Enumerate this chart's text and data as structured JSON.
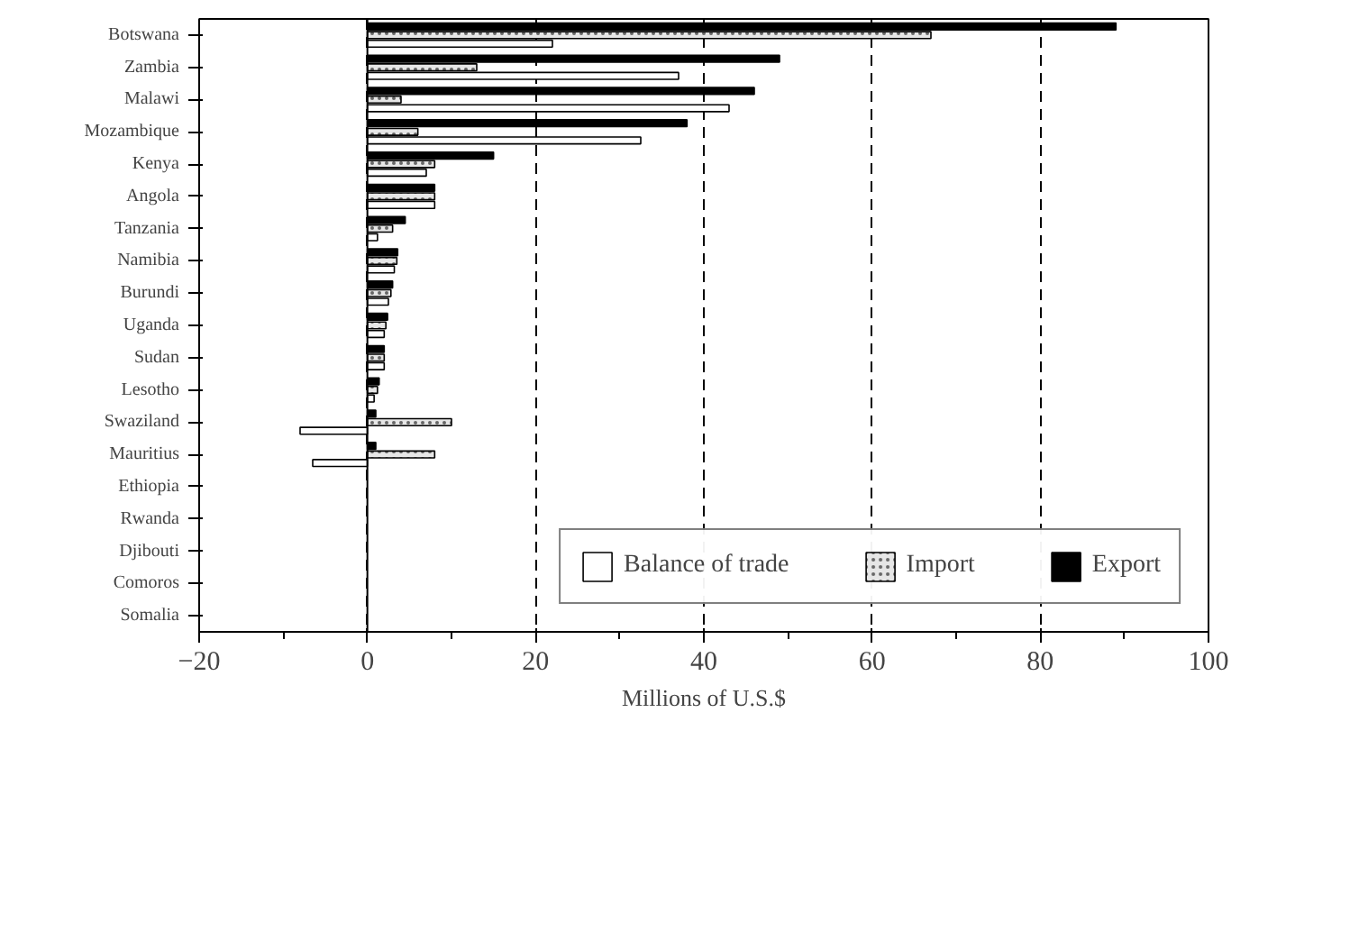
{
  "chart_data": {
    "type": "bar",
    "orientation": "horizontal",
    "xlabel": "Millions of U.S.$",
    "categories": [
      "Botswana",
      "Zambia",
      "Malawi",
      "Mozambique",
      "Kenya",
      "Angola",
      "Tanzania",
      "Namibia",
      "Burundi",
      "Uganda",
      "Sudan",
      "Lesotho",
      "Swaziland",
      "Mauritius",
      "Ethiopia",
      "Rwanda",
      "Djibouti",
      "Comoros",
      "Somalia"
    ],
    "series": [
      {
        "name": "Balance of trade",
        "color": "#ffffff",
        "values": [
          22,
          37,
          43,
          32.5,
          7,
          8,
          1.2,
          3.2,
          2.5,
          2,
          2,
          0.8,
          -8,
          -6.5,
          null,
          null,
          null,
          null,
          null
        ]
      },
      {
        "name": "Import",
        "color": "#e6e6e6",
        "values": [
          67,
          13,
          4,
          6,
          8,
          8,
          3,
          3.5,
          2.8,
          2.2,
          2,
          1.2,
          10,
          8,
          null,
          null,
          null,
          null,
          null
        ]
      },
      {
        "name": "Export",
        "color": "#000000",
        "values": [
          89,
          49,
          46,
          38,
          15,
          8,
          4.5,
          3.6,
          3,
          2.4,
          2,
          1.4,
          1,
          1,
          null,
          null,
          null,
          null,
          null
        ]
      }
    ],
    "xlim": [
      -20,
      100
    ],
    "xticks": [
      -20,
      0,
      20,
      40,
      60,
      80,
      100
    ],
    "grid": "x",
    "legend": "bottom"
  }
}
